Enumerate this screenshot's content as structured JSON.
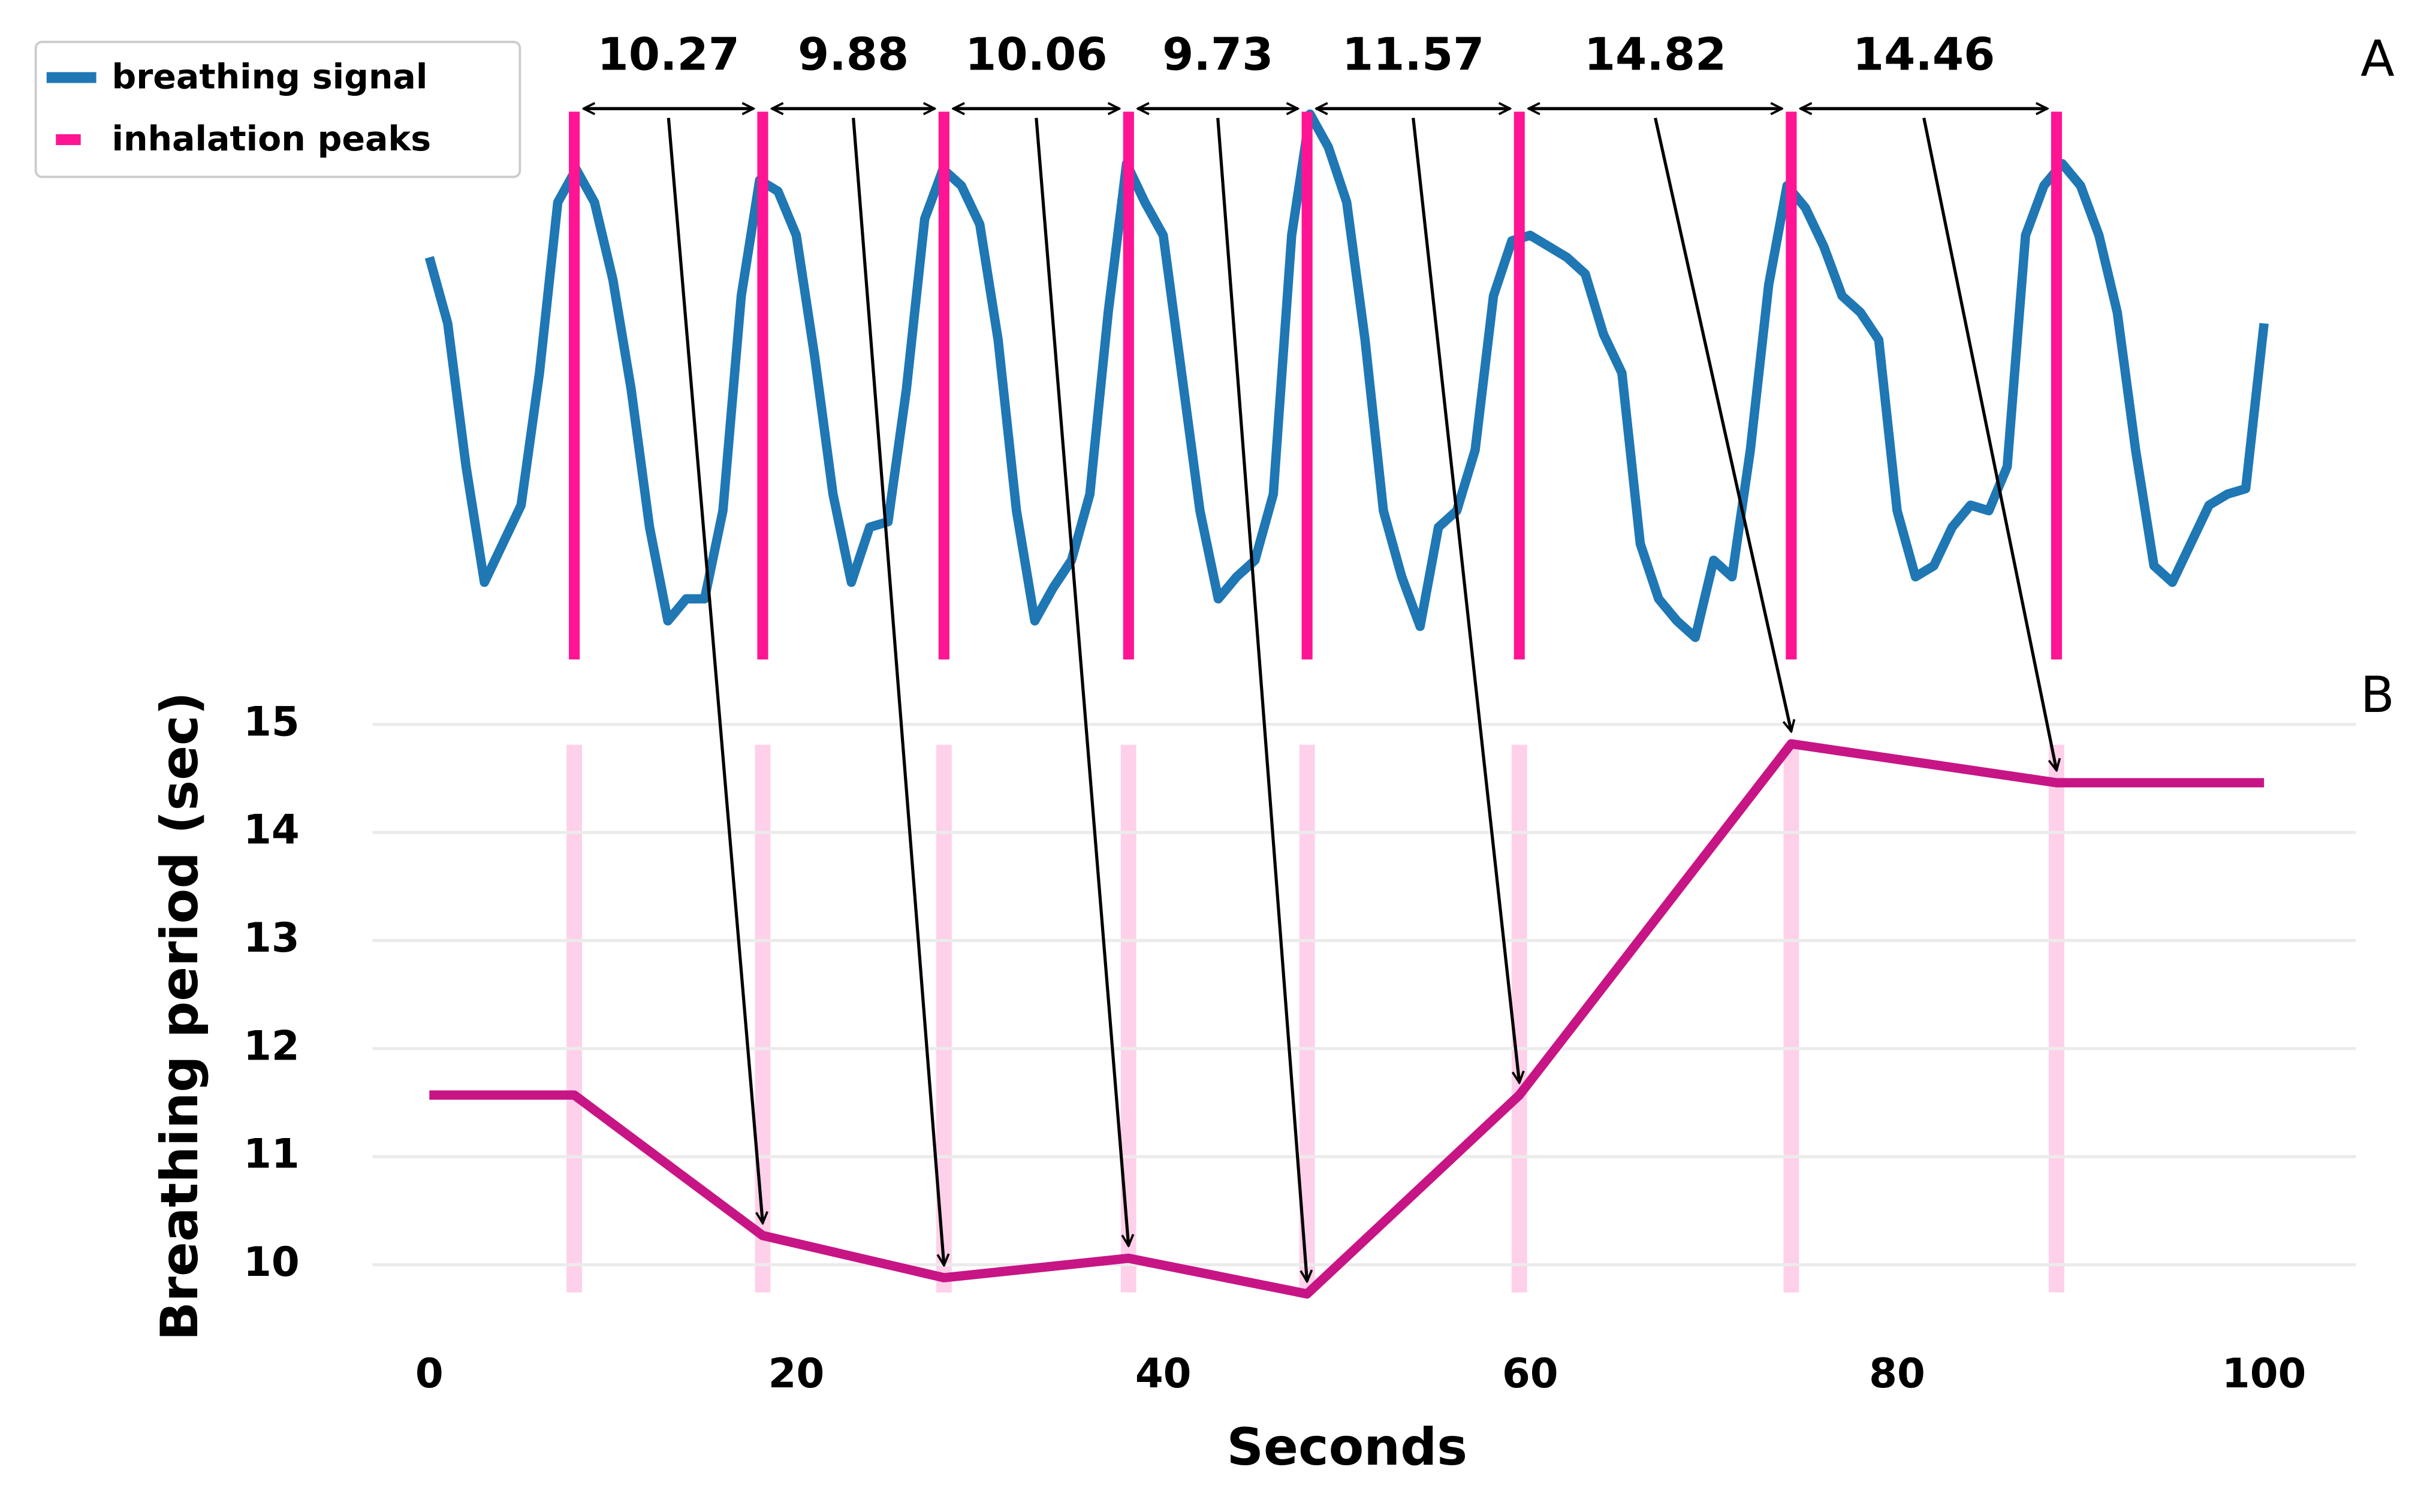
{
  "chart_data": [
    {
      "type": "line",
      "panel_label": "A",
      "ylim": [
        0,
        1
      ],
      "series": [
        {
          "name": "breathing signal",
          "color": "#1f77b4",
          "x": [
            0,
            1,
            2,
            3,
            4,
            5,
            6,
            7,
            8,
            9,
            10,
            11,
            12,
            13,
            14,
            15,
            16,
            17,
            18,
            19,
            20,
            21,
            22,
            23,
            24,
            25,
            26,
            27,
            28,
            29,
            30,
            31,
            32,
            33,
            34,
            35,
            36,
            37,
            38,
            39,
            40,
            41,
            42,
            43,
            44,
            45,
            46,
            47,
            48,
            49,
            50,
            51,
            52,
            53,
            54,
            55,
            56,
            57,
            58,
            59,
            60,
            61,
            62,
            63,
            64,
            65,
            66,
            67,
            68,
            69,
            70,
            71,
            72,
            73,
            74,
            75,
            76,
            77,
            78,
            79,
            80,
            81,
            82,
            83,
            84,
            85,
            86,
            87,
            88,
            89,
            90,
            91,
            92,
            93,
            94,
            95,
            96,
            97,
            98,
            99,
            100
          ],
          "values": [
            0.73,
            0.61,
            0.35,
            0.14,
            0.21,
            0.28,
            0.52,
            0.83,
            0.89,
            0.83,
            0.69,
            0.49,
            0.24,
            0.07,
            0.11,
            0.11,
            0.27,
            0.66,
            0.87,
            0.85,
            0.77,
            0.55,
            0.3,
            0.14,
            0.24,
            0.25,
            0.49,
            0.8,
            0.89,
            0.86,
            0.79,
            0.58,
            0.27,
            0.07,
            0.13,
            0.18,
            0.3,
            0.63,
            0.9,
            0.83,
            0.77,
            0.52,
            0.27,
            0.11,
            0.15,
            0.18,
            0.3,
            0.77,
            0.99,
            0.93,
            0.83,
            0.58,
            0.27,
            0.15,
            0.06,
            0.24,
            0.27,
            0.38,
            0.66,
            0.76,
            0.77,
            0.75,
            0.73,
            0.7,
            0.59,
            0.52,
            0.21,
            0.11,
            0.07,
            0.04,
            0.18,
            0.15,
            0.38,
            0.68,
            0.86,
            0.82,
            0.75,
            0.66,
            0.63,
            0.58,
            0.27,
            0.15,
            0.17,
            0.24,
            0.28,
            0.27,
            0.35,
            0.77,
            0.86,
            0.9,
            0.86,
            0.77,
            0.63,
            0.38,
            0.17,
            0.14,
            0.21,
            0.28,
            0.3,
            0.31,
            0.61
          ]
        }
      ],
      "peaks": {
        "name": "inhalation peaks",
        "color": "#ff1493",
        "x": [
          7.9,
          18.17,
          28.05,
          38.11,
          47.84,
          59.41,
          74.23,
          88.69
        ]
      },
      "intervals": [
        10.27,
        9.88,
        10.06,
        9.73,
        11.57,
        14.82,
        14.46
      ]
    },
    {
      "type": "line",
      "panel_label": "B",
      "xlabel": "Seconds",
      "ylabel": "Breathing period (sec)",
      "color": "#c71585",
      "x": [
        0,
        7.9,
        18.17,
        28.05,
        38.11,
        47.84,
        59.41,
        74.23,
        88.69,
        100
      ],
      "values": [
        11.57,
        11.57,
        10.27,
        9.88,
        10.06,
        9.73,
        11.57,
        14.82,
        14.46,
        14.46
      ],
      "xlim": [
        -3.1,
        105
      ],
      "ylim": [
        9.6,
        15.4
      ],
      "xticks": [
        0,
        20,
        40,
        60,
        80,
        100
      ],
      "yticks": [
        10,
        11,
        12,
        13,
        14,
        15
      ],
      "grid": true
    }
  ]
}
